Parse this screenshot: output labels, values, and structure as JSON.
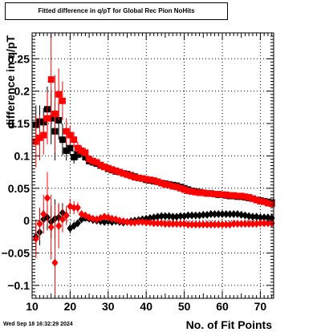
{
  "title": "Fitted difference in q/pT for Global Rec Pion NoHits",
  "footer_timestamp": "Wed Sep 18 16:32:29 2024",
  "chart_data": {
    "type": "scatter",
    "xlabel": "No. of Fit Points",
    "ylabel": "difference in q/pT",
    "xlim": [
      10,
      73.5
    ],
    "ylim": [
      -0.12,
      0.29
    ],
    "grid": true,
    "xticks": [
      10,
      20,
      30,
      40,
      50,
      60,
      70
    ],
    "yticks": [
      -0.1,
      -0.05,
      0,
      0.05,
      0.1,
      0.15,
      0.2,
      0.25
    ],
    "ytick_labels": [
      "−0.1",
      "−0.05",
      "0",
      "0.05",
      "0.1",
      "0.15",
      "0.2",
      "0.25"
    ],
    "series": [
      {
        "color": "#000000",
        "marker": "square",
        "x": [
          11,
          12,
          13,
          14,
          15,
          16,
          17,
          18,
          19,
          20,
          21,
          22,
          23,
          24,
          25,
          26,
          27,
          28,
          29,
          30,
          31,
          32,
          33,
          34,
          35,
          36,
          37,
          38,
          39,
          40,
          41,
          42,
          43,
          44,
          45,
          46,
          47,
          48,
          49,
          50,
          51,
          52,
          53,
          54,
          55,
          56,
          57,
          58,
          59,
          60,
          61,
          62,
          63,
          64,
          65,
          66,
          67,
          68,
          69,
          70,
          71,
          72,
          73
        ],
        "y": [
          0.148,
          0.153,
          0.152,
          0.172,
          0.158,
          0.138,
          0.155,
          0.125,
          0.108,
          0.112,
          0.098,
          0.102,
          0.105,
          0.098,
          0.092,
          0.09,
          0.088,
          0.085,
          0.083,
          0.08,
          0.078,
          0.076,
          0.075,
          0.073,
          0.072,
          0.07,
          0.068,
          0.066,
          0.065,
          0.063,
          0.062,
          0.061,
          0.06,
          0.058,
          0.057,
          0.056,
          0.055,
          0.054,
          0.052,
          0.05,
          0.048,
          0.046,
          0.045,
          0.044,
          0.043,
          0.042,
          0.042,
          0.041,
          0.04,
          0.04,
          0.039,
          0.038,
          0.038,
          0.037,
          0.037,
          0.036,
          0.035,
          0.034,
          0.032,
          0.031,
          0.03,
          0.029,
          0.028
        ],
        "yerr": [
          0.03,
          0.025,
          0.022,
          0.035,
          0.04,
          0.045,
          0.03,
          0.025,
          0.015,
          0.012,
          0.01,
          0.008,
          0.007,
          0.006,
          0.005,
          0.005,
          0.004,
          0.004,
          0.004,
          0.003,
          0.003,
          0.003,
          0.003,
          0.003,
          0.003,
          0.003,
          0.003,
          0.003,
          0.003,
          0.003,
          0.003,
          0.003,
          0.003,
          0.003,
          0.003,
          0.003,
          0.003,
          0.003,
          0.003,
          0.003,
          0.003,
          0.003,
          0.003,
          0.003,
          0.003,
          0.003,
          0.003,
          0.003,
          0.003,
          0.003,
          0.003,
          0.003,
          0.003,
          0.003,
          0.003,
          0.003,
          0.003,
          0.003,
          0.003,
          0.003,
          0.003,
          0.003,
          0.003
        ]
      },
      {
        "color": "#ff0000",
        "marker": "square",
        "x": [
          11,
          12,
          13,
          14,
          15,
          16,
          17,
          18,
          19,
          20,
          21,
          22,
          23,
          24,
          25,
          26,
          27,
          28,
          29,
          30,
          31,
          32,
          33,
          34,
          35,
          36,
          37,
          38,
          39,
          40,
          41,
          42,
          43,
          44,
          45,
          46,
          47,
          48,
          49,
          50,
          51,
          52,
          53,
          54,
          55,
          56,
          57,
          58,
          59,
          60,
          61,
          62,
          63,
          64,
          65,
          66,
          67,
          68,
          69,
          70,
          71,
          72,
          73
        ],
        "y": [
          0.122,
          0.128,
          0.132,
          0.158,
          0.218,
          0.165,
          0.195,
          0.185,
          0.138,
          0.132,
          0.125,
          0.112,
          0.108,
          0.105,
          0.095,
          0.092,
          0.09,
          0.086,
          0.083,
          0.081,
          0.079,
          0.077,
          0.075,
          0.073,
          0.071,
          0.069,
          0.067,
          0.066,
          0.065,
          0.064,
          0.063,
          0.062,
          0.06,
          0.058,
          0.056,
          0.055,
          0.053,
          0.052,
          0.05,
          0.048,
          0.046,
          0.045,
          0.044,
          0.043,
          0.043,
          0.042,
          0.042,
          0.041,
          0.041,
          0.04,
          0.04,
          0.039,
          0.039,
          0.038,
          0.038,
          0.037,
          0.036,
          0.034,
          0.032,
          0.03,
          0.029,
          0.027,
          0.026
        ],
        "yerr": [
          0.04,
          0.035,
          0.03,
          0.04,
          0.07,
          0.06,
          0.04,
          0.03,
          0.02,
          0.015,
          0.012,
          0.01,
          0.008,
          0.007,
          0.006,
          0.005,
          0.005,
          0.004,
          0.004,
          0.004,
          0.003,
          0.003,
          0.003,
          0.003,
          0.003,
          0.003,
          0.003,
          0.003,
          0.003,
          0.003,
          0.003,
          0.003,
          0.003,
          0.003,
          0.003,
          0.003,
          0.003,
          0.003,
          0.003,
          0.003,
          0.003,
          0.003,
          0.003,
          0.003,
          0.003,
          0.003,
          0.003,
          0.003,
          0.003,
          0.003,
          0.003,
          0.003,
          0.003,
          0.003,
          0.003,
          0.003,
          0.003,
          0.003,
          0.003,
          0.003,
          0.003,
          0.003,
          0.003
        ]
      },
      {
        "color": "#000000",
        "marker": "diamond",
        "x": [
          11,
          12,
          13,
          14,
          15,
          16,
          17,
          18,
          19,
          20,
          21,
          22,
          23,
          24,
          25,
          26,
          27,
          28,
          29,
          30,
          31,
          32,
          33,
          34,
          35,
          36,
          37,
          38,
          39,
          40,
          41,
          42,
          43,
          44,
          45,
          46,
          47,
          48,
          49,
          50,
          51,
          52,
          53,
          54,
          55,
          56,
          57,
          58,
          59,
          60,
          61,
          62,
          63,
          64,
          65,
          66,
          67,
          68,
          69,
          70,
          71,
          72,
          73
        ],
        "y": [
          -0.025,
          -0.018,
          0.002,
          0.005,
          -0.002,
          0.003,
          0.005,
          0.012,
          0.008,
          -0.012,
          -0.008,
          -0.004,
          0.002,
          0.004,
          0.003,
          0.001,
          0.0,
          -0.001,
          -0.002,
          -0.001,
          -0.002,
          -0.001,
          -0.002,
          -0.003,
          -0.002,
          -0.001,
          0.0,
          0.001,
          0.002,
          0.003,
          0.004,
          0.005,
          0.006,
          0.007,
          0.007,
          0.007,
          0.006,
          0.006,
          0.007,
          0.007,
          0.008,
          0.008,
          0.008,
          0.008,
          0.009,
          0.009,
          0.01,
          0.01,
          0.01,
          0.01,
          0.01,
          0.01,
          0.01,
          0.01,
          0.009,
          0.008,
          0.007,
          0.006,
          0.006,
          0.005,
          0.005,
          0.005,
          0.004
        ],
        "yerr": [
          0.02,
          0.02,
          0.015,
          0.02,
          0.025,
          0.03,
          0.02,
          0.015,
          0.01,
          0.008,
          0.006,
          0.005,
          0.004,
          0.004,
          0.003,
          0.003,
          0.003,
          0.003,
          0.002,
          0.002,
          0.002,
          0.002,
          0.002,
          0.002,
          0.002,
          0.002,
          0.002,
          0.002,
          0.002,
          0.002,
          0.002,
          0.002,
          0.002,
          0.002,
          0.002,
          0.002,
          0.002,
          0.002,
          0.002,
          0.002,
          0.002,
          0.002,
          0.002,
          0.002,
          0.002,
          0.002,
          0.002,
          0.002,
          0.002,
          0.002,
          0.002,
          0.002,
          0.002,
          0.002,
          0.002,
          0.002,
          0.002,
          0.002,
          0.002,
          0.002,
          0.002,
          0.002,
          0.002
        ]
      },
      {
        "color": "#ff0000",
        "marker": "diamond",
        "x": [
          11,
          12,
          13,
          14,
          15,
          16,
          17,
          18,
          19,
          20,
          21,
          22,
          23,
          24,
          25,
          26,
          27,
          28,
          29,
          30,
          31,
          32,
          33,
          34,
          35,
          36,
          37,
          38,
          39,
          40,
          41,
          42,
          43,
          44,
          45,
          46,
          47,
          48,
          49,
          50,
          51,
          52,
          53,
          54,
          55,
          56,
          57,
          58,
          59,
          60,
          61,
          62,
          63,
          64,
          65,
          66,
          67,
          68,
          69,
          70,
          71,
          72,
          73
        ],
        "y": [
          -0.028,
          -0.005,
          0.01,
          0.035,
          -0.01,
          -0.065,
          -0.008,
          0.002,
          0.008,
          0.022,
          0.02,
          0.02,
          0.01,
          0.008,
          0.005,
          0.003,
          0.002,
          0.004,
          0.006,
          0.005,
          0.003,
          0.002,
          0.0,
          -0.001,
          -0.002,
          -0.003,
          -0.003,
          -0.002,
          -0.002,
          -0.003,
          -0.003,
          -0.004,
          -0.004,
          -0.004,
          -0.005,
          -0.005,
          -0.005,
          -0.005,
          -0.005,
          -0.005,
          -0.006,
          -0.006,
          -0.006,
          -0.006,
          -0.006,
          -0.006,
          -0.006,
          -0.006,
          -0.006,
          -0.006,
          -0.006,
          -0.006,
          -0.005,
          -0.005,
          -0.005,
          -0.005,
          -0.005,
          -0.005,
          -0.005,
          -0.004,
          -0.004,
          -0.004,
          -0.004
        ],
        "yerr": [
          0.03,
          0.025,
          0.03,
          0.04,
          0.05,
          0.09,
          0.035,
          0.02,
          0.015,
          0.012,
          0.01,
          0.008,
          0.006,
          0.005,
          0.004,
          0.004,
          0.003,
          0.003,
          0.003,
          0.003,
          0.003,
          0.002,
          0.002,
          0.002,
          0.002,
          0.002,
          0.002,
          0.002,
          0.002,
          0.002,
          0.002,
          0.002,
          0.002,
          0.002,
          0.002,
          0.002,
          0.002,
          0.002,
          0.002,
          0.002,
          0.002,
          0.002,
          0.002,
          0.002,
          0.002,
          0.002,
          0.002,
          0.002,
          0.002,
          0.002,
          0.002,
          0.002,
          0.002,
          0.002,
          0.002,
          0.002,
          0.002,
          0.002,
          0.002,
          0.002,
          0.002,
          0.002,
          0.002
        ]
      }
    ]
  }
}
